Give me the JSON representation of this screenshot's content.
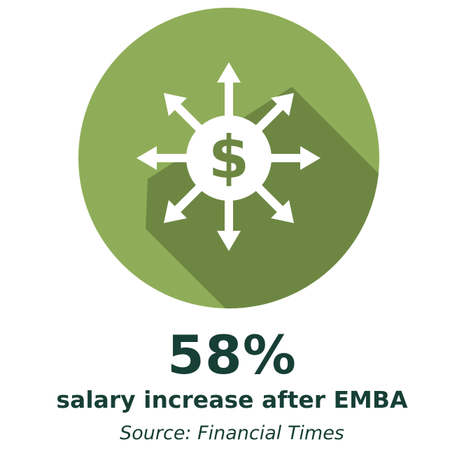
{
  "colors": {
    "circle": "#8fad58",
    "shadow": "#6d8743",
    "symbol": "#ffffff",
    "dollar": "#6d8743",
    "text": "#173f35"
  },
  "icon": {
    "name": "money-growth-arrows-icon",
    "glyph": "$"
  },
  "stat": {
    "value": "58%",
    "label": "salary increase after EMBA",
    "source": "Source: Financial Times"
  }
}
